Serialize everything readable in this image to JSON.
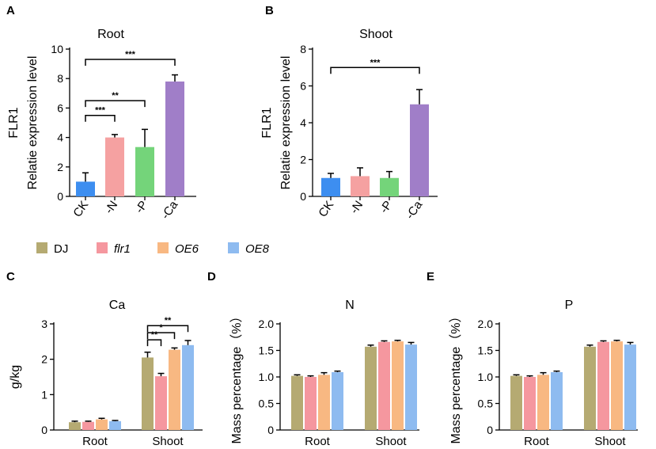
{
  "colors": {
    "CK": "#3d8ef0",
    "-N": "#f5a1a1",
    "-P": "#74d47a",
    "-Ca": "#a07ec8",
    "DJ": "#b5aa72",
    "flr1": "#f5979f",
    "OE6": "#f8b882",
    "OE8": "#8ebbf0"
  },
  "legend": [
    {
      "label": "DJ",
      "italic": false,
      "color_key": "DJ"
    },
    {
      "label": "flr1",
      "italic": true,
      "color_key": "flr1"
    },
    {
      "label": "OE6",
      "italic": true,
      "color_key": "OE6"
    },
    {
      "label": "OE8",
      "italic": true,
      "color_key": "OE8"
    }
  ],
  "chart_data": [
    {
      "panel": "A",
      "type": "bar",
      "title": "Root",
      "ylabel": [
        "FLR1",
        "Relatie expression level"
      ],
      "ylim": [
        0,
        10
      ],
      "yticks": [
        "0",
        "2",
        "4",
        "6",
        "8",
        "10"
      ],
      "categories": [
        "CK",
        "-N",
        "-P",
        "-Ca"
      ],
      "values": [
        1.0,
        4.0,
        3.35,
        7.8
      ],
      "errors": [
        0.6,
        0.2,
        1.2,
        0.45
      ],
      "significance": [
        {
          "from": "CK",
          "to": "-N",
          "label": "***",
          "y": 5.5
        },
        {
          "from": "CK",
          "to": "-P",
          "label": "**",
          "y": 6.5
        },
        {
          "from": "CK",
          "to": "-Ca",
          "label": "***",
          "y": 9.3
        }
      ]
    },
    {
      "panel": "B",
      "type": "bar",
      "title": "Shoot",
      "ylabel": [
        "FLR1",
        "Relatie expression level"
      ],
      "ylim": [
        0,
        8
      ],
      "yticks": [
        "0",
        "2",
        "4",
        "6",
        "8"
      ],
      "categories": [
        "CK",
        "-N",
        "-P",
        "-Ca"
      ],
      "values": [
        1.0,
        1.1,
        1.0,
        5.0
      ],
      "errors": [
        0.25,
        0.45,
        0.35,
        0.8
      ],
      "significance": [
        {
          "from": "CK",
          "to": "-Ca",
          "label": "***",
          "y": 7.0
        }
      ]
    },
    {
      "panel": "C",
      "type": "bar",
      "title": "Ca",
      "ylabel": [
        "g/kg"
      ],
      "ylim": [
        0,
        3
      ],
      "yticks": [
        "0",
        "1",
        "2",
        "3"
      ],
      "categories": [
        "Root",
        "Shoot"
      ],
      "series": [
        {
          "name": "DJ",
          "values": [
            0.22,
            2.05
          ],
          "errors": [
            0.03,
            0.15
          ]
        },
        {
          "name": "flr1",
          "values": [
            0.23,
            1.52
          ],
          "errors": [
            0.02,
            0.08
          ]
        },
        {
          "name": "OE6",
          "values": [
            0.3,
            2.27
          ],
          "errors": [
            0.03,
            0.05
          ]
        },
        {
          "name": "OE8",
          "values": [
            0.25,
            2.4
          ],
          "errors": [
            0.02,
            0.13
          ]
        }
      ],
      "significance": [
        {
          "group": "Shoot",
          "from": "DJ",
          "to": "flr1",
          "label": "**",
          "y": 2.55
        },
        {
          "group": "Shoot",
          "from": "DJ",
          "to": "OE6",
          "label": "*",
          "y": 2.75
        },
        {
          "group": "Shoot",
          "from": "DJ",
          "to": "OE8",
          "label": "**",
          "y": 2.95
        }
      ]
    },
    {
      "panel": "D",
      "type": "bar",
      "title": "N",
      "ylabel": [
        "Mass percentage（%）"
      ],
      "ylim": [
        0,
        2.0
      ],
      "yticks": [
        "0",
        "0.5",
        "1.0",
        "1.5",
        "2.0"
      ],
      "categories": [
        "Root",
        "Shoot"
      ],
      "series": [
        {
          "name": "DJ",
          "values": [
            1.02,
            1.57
          ],
          "errors": [
            0.02,
            0.03
          ]
        },
        {
          "name": "flr1",
          "values": [
            1.0,
            1.66
          ],
          "errors": [
            0.02,
            0.02
          ]
        },
        {
          "name": "OE6",
          "values": [
            1.04,
            1.67
          ],
          "errors": [
            0.04,
            0.02
          ]
        },
        {
          "name": "OE8",
          "values": [
            1.09,
            1.61
          ],
          "errors": [
            0.02,
            0.04
          ]
        }
      ],
      "significance": []
    },
    {
      "panel": "E",
      "type": "bar",
      "title": "P",
      "ylabel": [
        "Mass percentage（%）"
      ],
      "ylim": [
        0,
        2.0
      ],
      "yticks": [
        "0",
        "0.5",
        "1.0",
        "1.5",
        "2.0"
      ],
      "categories": [
        "Root",
        "Shoot"
      ],
      "series": [
        {
          "name": "DJ",
          "values": [
            1.02,
            1.57
          ],
          "errors": [
            0.02,
            0.03
          ]
        },
        {
          "name": "flr1",
          "values": [
            1.0,
            1.66
          ],
          "errors": [
            0.02,
            0.02
          ]
        },
        {
          "name": "OE6",
          "values": [
            1.04,
            1.67
          ],
          "errors": [
            0.04,
            0.02
          ]
        },
        {
          "name": "OE8",
          "values": [
            1.09,
            1.61
          ],
          "errors": [
            0.02,
            0.04
          ]
        }
      ],
      "significance": []
    }
  ]
}
